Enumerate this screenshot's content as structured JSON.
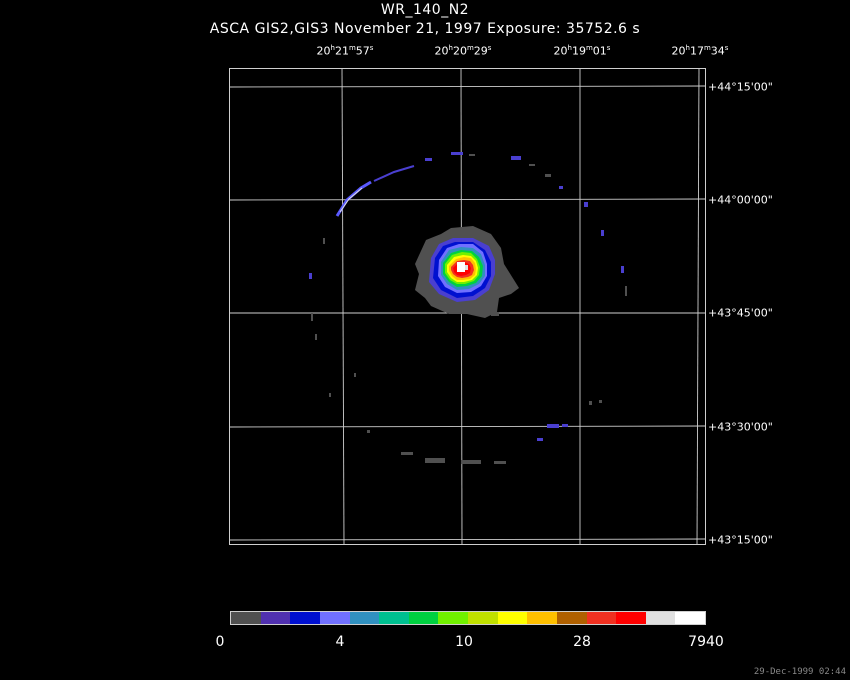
{
  "header": {
    "title": "WR_140_N2",
    "subtitle": "ASCA GIS2,GIS3 November 21, 1997 Exposure: 35752.6 s"
  },
  "ra_labels": [
    {
      "h": "20",
      "m": "21",
      "s": "57"
    },
    {
      "h": "20",
      "m": "20",
      "s": "29"
    },
    {
      "h": "20",
      "m": "19",
      "s": "01"
    },
    {
      "h": "20",
      "m": "17",
      "s": "34"
    }
  ],
  "dec_labels": [
    "+44°15'00\"",
    "+44°00'00\"",
    "+43°45'00\"",
    "+43°30'00\"",
    "+43°15'00\""
  ],
  "colorbar": {
    "colors": [
      "#505050",
      "#5030b0",
      "#0010d0",
      "#7070ff",
      "#3090c0",
      "#00c090",
      "#00d040",
      "#70f000",
      "#c0e000",
      "#ffff00",
      "#ffc000",
      "#b06000",
      "#f03020",
      "#ff0000",
      "#e0e0e0",
      "#ffffff"
    ],
    "labels": [
      "0",
      "4",
      "10",
      "28",
      "7940"
    ]
  },
  "timestamp": "29-Dec-1999 02:44"
}
